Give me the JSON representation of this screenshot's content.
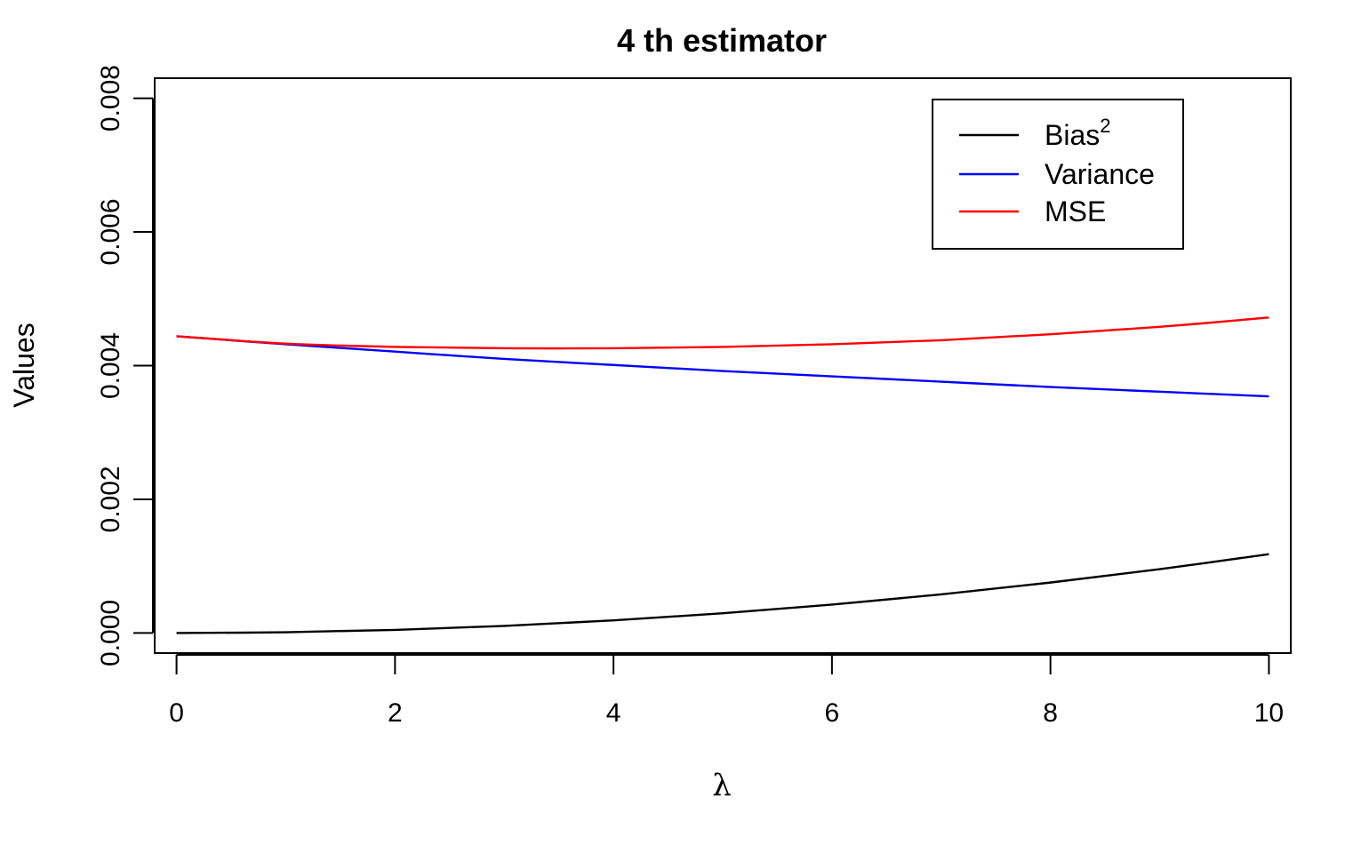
{
  "chart_data": {
    "type": "line",
    "title": "4 th estimator",
    "xlabel": "λ",
    "ylabel": "Values",
    "xlim": [
      -0.2,
      10.2
    ],
    "ylim": [
      -0.0003,
      0.0083
    ],
    "x_ticks": [
      0,
      2,
      4,
      6,
      8,
      10
    ],
    "x_tick_labels": [
      "0",
      "2",
      "4",
      "6",
      "8",
      "10"
    ],
    "y_ticks": [
      0,
      0.002,
      0.004,
      0.006,
      0.008
    ],
    "y_tick_labels": [
      "0.000",
      "0.002",
      "0.004",
      "0.006",
      "0.008"
    ],
    "grid": false,
    "legend_position": "top-right",
    "x": [
      0,
      1,
      2,
      3,
      4,
      5,
      6,
      7,
      8,
      9,
      10
    ],
    "series": [
      {
        "name": "Bias",
        "name_superscript": "2",
        "color": "#000000",
        "values": [
          0.0,
          1.2e-05,
          4.7e-05,
          0.000106,
          0.000189,
          0.000295,
          0.000425,
          0.000578,
          0.000755,
          0.000955,
          0.00118
        ]
      },
      {
        "name": "Variance",
        "name_superscript": "",
        "color": "#0000ff",
        "values": [
          0.00444,
          0.00432,
          0.00421,
          0.0041,
          0.00401,
          0.00392,
          0.00384,
          0.00376,
          0.00368,
          0.00361,
          0.00354
        ]
      },
      {
        "name": "MSE",
        "name_superscript": "",
        "color": "#ff0000",
        "values": [
          0.00444,
          0.00433,
          0.00428,
          0.00426,
          0.00426,
          0.00428,
          0.00432,
          0.00438,
          0.00447,
          0.00458,
          0.00472
        ]
      }
    ]
  }
}
